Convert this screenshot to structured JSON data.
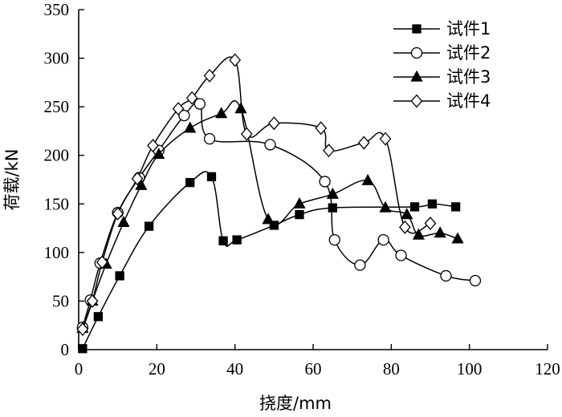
{
  "chart_data": {
    "type": "line",
    "title": "",
    "xlabel": "挠度/mm",
    "ylabel": "荷载/kN",
    "xlim": [
      0,
      120
    ],
    "ylim": [
      0,
      350
    ],
    "xticks": [
      0,
      20,
      40,
      60,
      80,
      100,
      120
    ],
    "yticks": [
      0,
      50,
      100,
      150,
      200,
      250,
      300,
      350
    ],
    "grid": false,
    "legend_position": "top-right",
    "series": [
      {
        "name": "试件1",
        "marker": "square-filled",
        "x": [
          1.0,
          5.0,
          10.5,
          18.0,
          28.5,
          34.0,
          37.0,
          40.5,
          50.0,
          56.5,
          65.0,
          86.0,
          90.5,
          96.5
        ],
        "y": [
          1,
          34,
          76,
          127,
          172,
          178,
          112,
          113,
          128,
          139,
          146,
          147,
          150,
          147
        ]
      },
      {
        "name": "试件2",
        "marker": "circle-open",
        "x": [
          1.0,
          3.0,
          5.5,
          10.0,
          15.5,
          20.5,
          27.0,
          31.0,
          33.5,
          49.0,
          63.0,
          65.5,
          72.0,
          78.0,
          82.5,
          94.0,
          101.5
        ],
        "y": [
          23,
          51,
          89,
          141,
          177,
          205,
          241,
          253,
          217,
          211,
          173,
          113,
          87,
          113,
          97,
          76,
          71
        ]
      },
      {
        "name": "试件3",
        "marker": "triangle-filled",
        "x": [
          1.0,
          3.5,
          7.0,
          11.5,
          16.0,
          20.5,
          28.5,
          36.5,
          41.5,
          48.5,
          56.5,
          65.0,
          74.0,
          78.5,
          84.0,
          87.0,
          92.5,
          97.0
        ],
        "y": [
          22,
          50,
          88,
          131,
          169,
          201,
          228,
          243,
          248,
          134,
          150,
          160,
          174,
          146,
          139,
          118,
          120,
          114
        ]
      },
      {
        "name": "试件4",
        "marker": "diamond-open",
        "x": [
          1.0,
          3.5,
          6.0,
          10.0,
          15.0,
          19.0,
          25.5,
          29.0,
          33.5,
          40.0,
          43.0,
          50.0,
          62.0,
          64.0,
          73.0,
          78.5,
          83.5,
          90.0
        ],
        "y": [
          21,
          50,
          90,
          140,
          176,
          210,
          248,
          259,
          282,
          298,
          222,
          233,
          228,
          205,
          213,
          217,
          126,
          130
        ]
      }
    ]
  }
}
